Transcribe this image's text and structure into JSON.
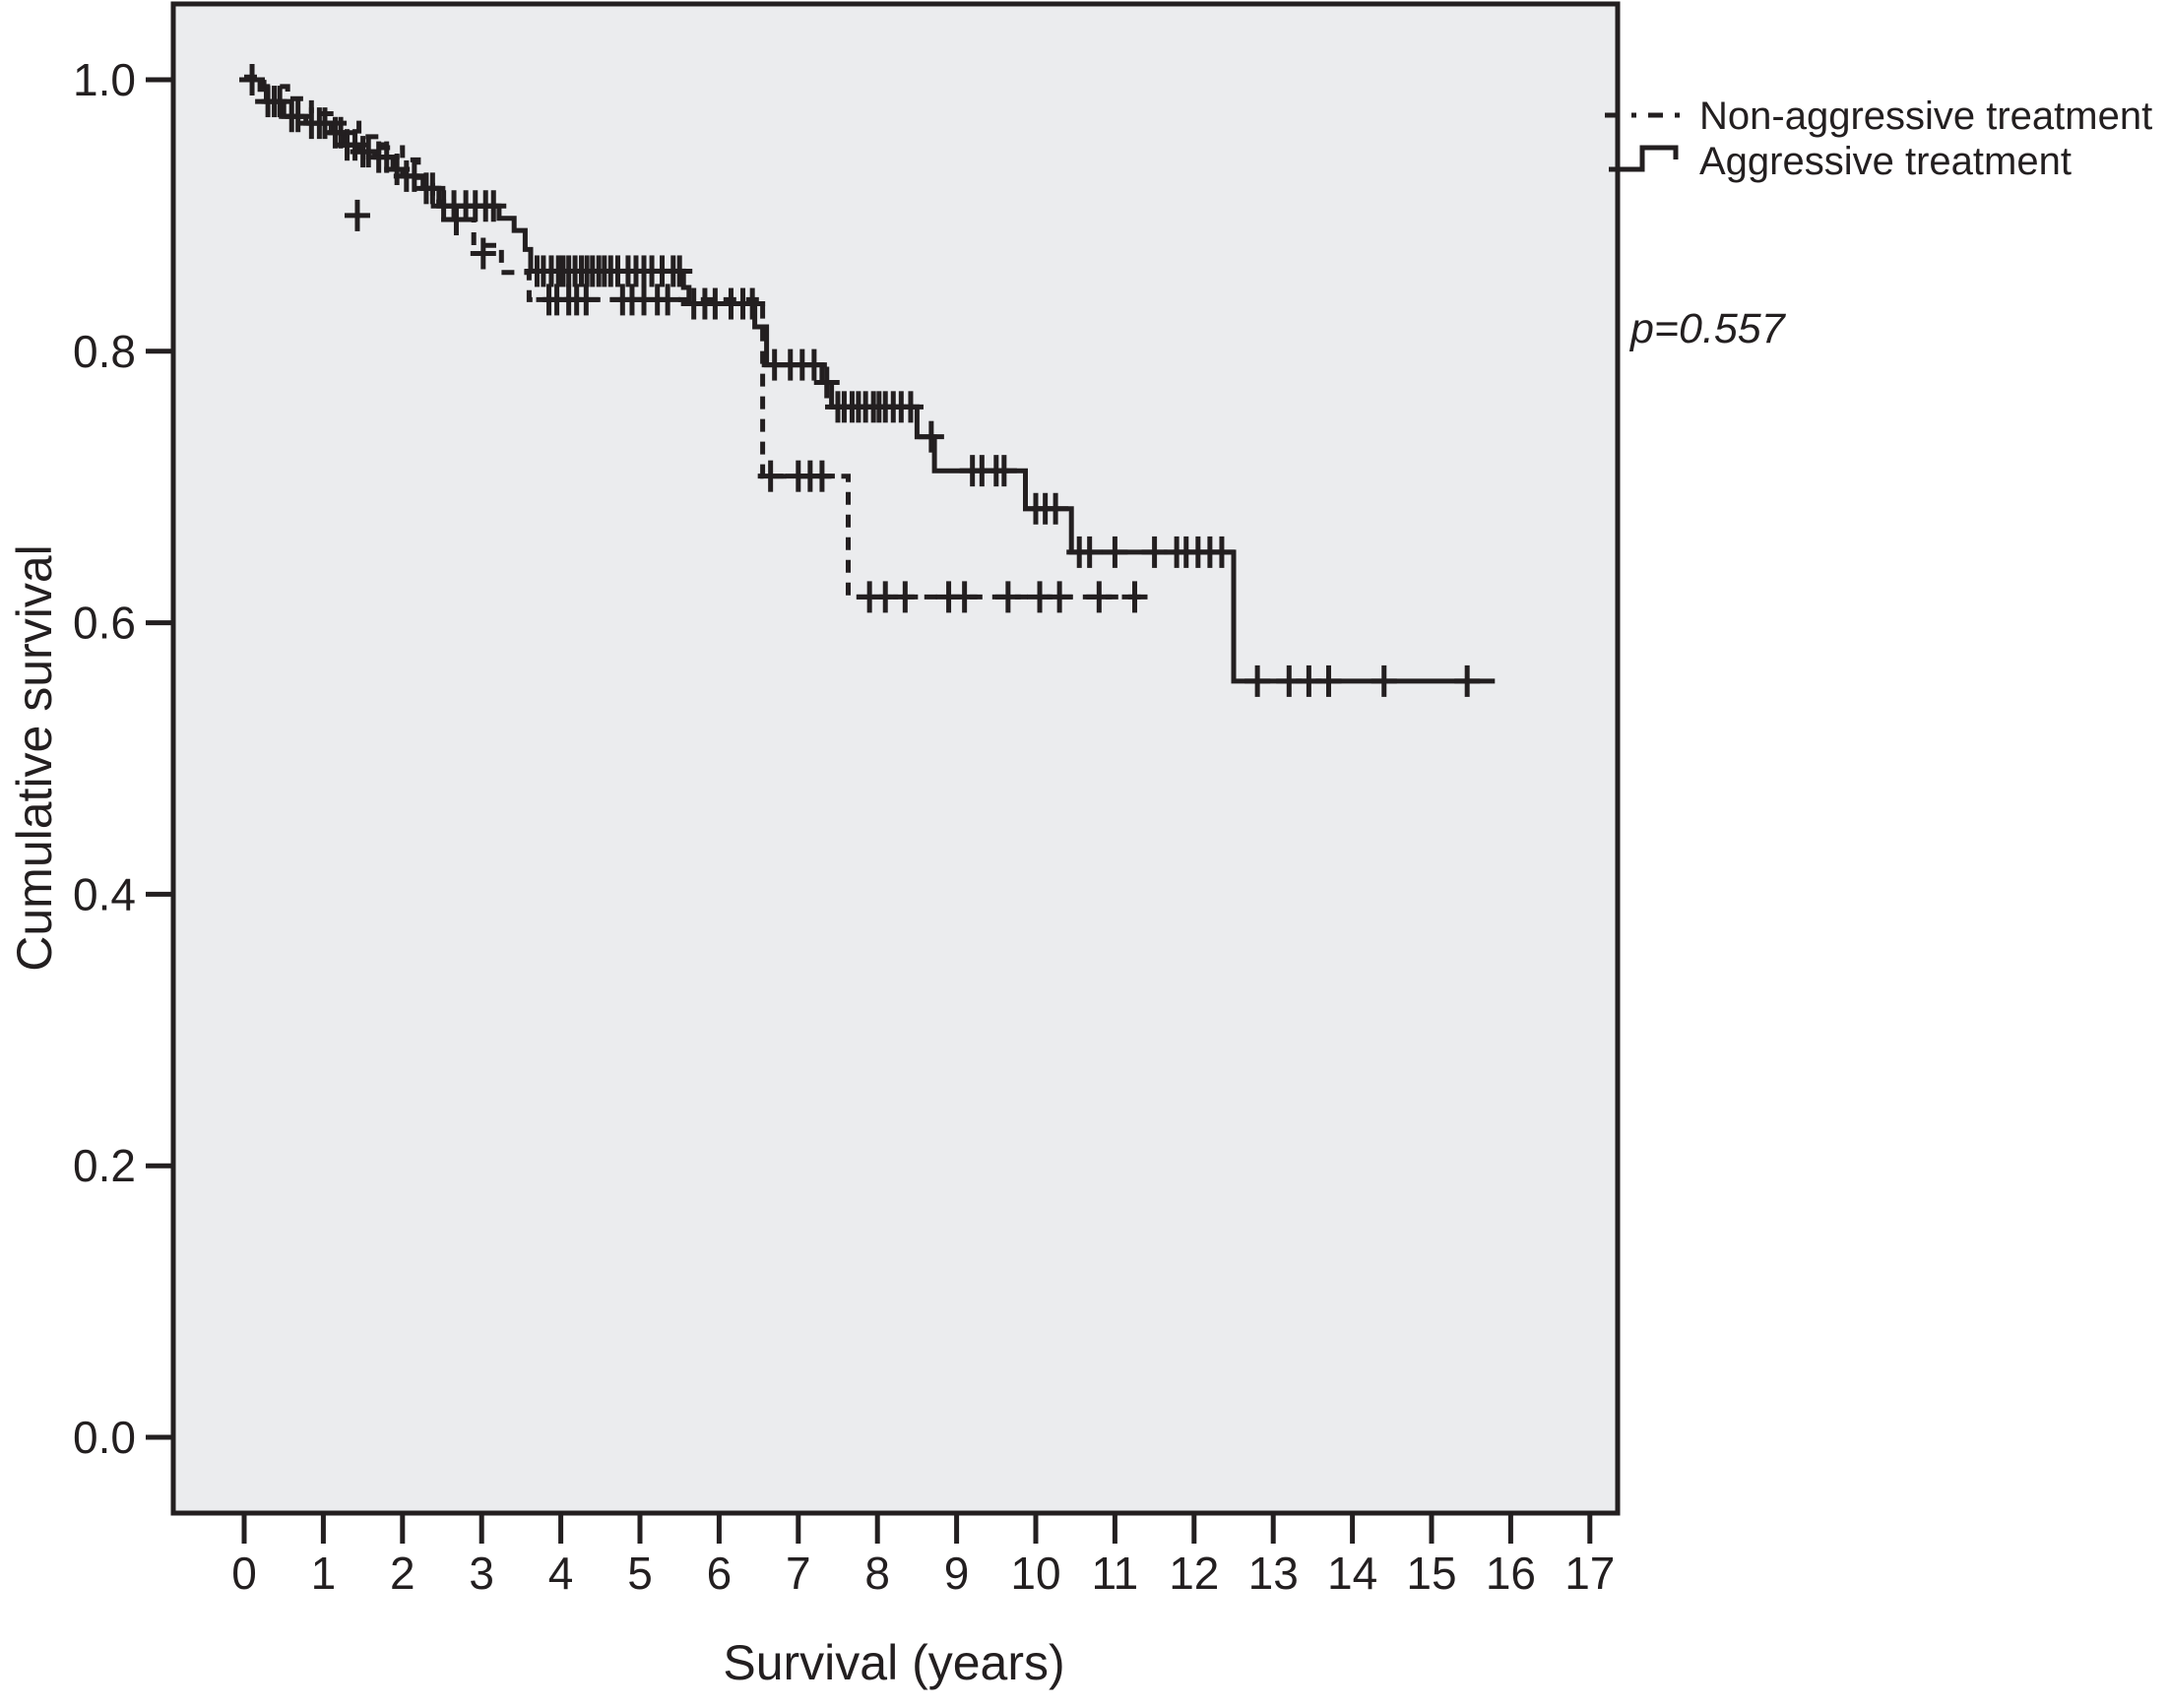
{
  "colors": {
    "stroke": "#231f20",
    "plot_bg": "#ebecee",
    "page_bg": "#ffffff"
  },
  "annotation": {
    "p_value": "p=0.557"
  },
  "legend": {
    "items": [
      {
        "label": "Non-aggressive treatment",
        "style": "dashed"
      },
      {
        "label": "Aggressive treatment",
        "style": "solid"
      }
    ]
  },
  "chart_data": {
    "type": "line",
    "subtype": "kaplan-meier-step",
    "title": "",
    "xlabel": "Survival (years)",
    "ylabel": "Cumulative survival",
    "xlim": [
      0,
      17
    ],
    "ylim": [
      0.0,
      1.0
    ],
    "grid": false,
    "legend_position": "top-right-outside",
    "p_value": "p=0.557",
    "x_ticks": [
      {
        "label": "0",
        "value": 0
      },
      {
        "label": "1",
        "value": 1
      },
      {
        "label": "2",
        "value": 2
      },
      {
        "label": "3",
        "value": 3
      },
      {
        "label": "4",
        "value": 4
      },
      {
        "label": "5",
        "value": 5
      },
      {
        "label": "6",
        "value": 6
      },
      {
        "label": "7",
        "value": 7
      },
      {
        "label": "8",
        "value": 8
      },
      {
        "label": "9",
        "value": 9
      },
      {
        "label": "10",
        "value": 10
      },
      {
        "label": "11",
        "value": 11
      },
      {
        "label": "12",
        "value": 12
      },
      {
        "label": "13",
        "value": 13
      },
      {
        "label": "14",
        "value": 14
      },
      {
        "label": "15",
        "value": 15
      },
      {
        "label": "16",
        "value": 16
      },
      {
        "label": "17",
        "value": 17
      }
    ],
    "y_ticks": [
      {
        "label": "1.0",
        "value": 1.0
      },
      {
        "label": "0.8",
        "value": 0.8
      },
      {
        "label": "0.6",
        "value": 0.6
      },
      {
        "label": "0.4",
        "value": 0.4
      },
      {
        "label": "0.2",
        "value": 0.2
      },
      {
        "label": "0.0",
        "value": 0.0
      }
    ],
    "series": [
      {
        "name": "Non-aggressive treatment",
        "line": "dashed",
        "end": 11.4,
        "steps": [
          [
            0,
            1.002
          ],
          [
            0.25,
            0.995
          ],
          [
            0.55,
            0.986
          ],
          [
            0.85,
            0.975
          ],
          [
            1.15,
            0.968
          ],
          [
            1.45,
            0.958
          ],
          [
            1.75,
            0.95
          ],
          [
            2.0,
            0.941
          ],
          [
            2.2,
            0.928
          ],
          [
            2.38,
            0.91
          ],
          [
            2.52,
            0.897
          ],
          [
            2.9,
            0.878
          ],
          [
            3.25,
            0.858
          ],
          [
            3.6,
            0.838
          ],
          [
            6.55,
            0.708
          ],
          [
            7.63,
            0.619
          ]
        ],
        "censors": [
          [
            1.43,
            0.9
          ],
          [
            2.68,
            0.897
          ],
          [
            3.02,
            0.872
          ],
          [
            3.85,
            0.838
          ],
          [
            3.95,
            0.838
          ],
          [
            4.1,
            0.838
          ],
          [
            4.2,
            0.838
          ],
          [
            4.32,
            0.838
          ],
          [
            4.78,
            0.838
          ],
          [
            4.9,
            0.838
          ],
          [
            5.05,
            0.838
          ],
          [
            5.22,
            0.838
          ],
          [
            5.35,
            0.838
          ],
          [
            6.65,
            0.708
          ],
          [
            7.0,
            0.708
          ],
          [
            7.15,
            0.708
          ],
          [
            7.3,
            0.708
          ],
          [
            7.9,
            0.619
          ],
          [
            8.1,
            0.619
          ],
          [
            8.35,
            0.619
          ],
          [
            8.9,
            0.619
          ],
          [
            9.1,
            0.619
          ],
          [
            9.65,
            0.619
          ],
          [
            10.05,
            0.619
          ],
          [
            10.3,
            0.619
          ],
          [
            10.8,
            0.619
          ],
          [
            11.25,
            0.619
          ]
        ]
      },
      {
        "name": "Aggressive treatment",
        "line": "solid",
        "end": 15.8,
        "steps": [
          [
            0,
            1.0
          ],
          [
            0.2,
            0.993
          ],
          [
            0.28,
            0.984
          ],
          [
            0.5,
            0.973
          ],
          [
            0.78,
            0.968
          ],
          [
            1.1,
            0.961
          ],
          [
            1.27,
            0.952
          ],
          [
            1.45,
            0.947
          ],
          [
            1.65,
            0.943
          ],
          [
            1.88,
            0.934
          ],
          [
            2.0,
            0.929
          ],
          [
            2.26,
            0.92
          ],
          [
            2.46,
            0.907
          ],
          [
            3.22,
            0.898
          ],
          [
            3.41,
            0.889
          ],
          [
            3.55,
            0.875
          ],
          [
            3.62,
            0.859
          ],
          [
            5.55,
            0.847
          ],
          [
            5.62,
            0.835
          ],
          [
            6.45,
            0.818
          ],
          [
            6.6,
            0.79
          ],
          [
            7.3,
            0.777
          ],
          [
            7.42,
            0.759
          ],
          [
            8.5,
            0.737
          ],
          [
            8.72,
            0.712
          ],
          [
            9.87,
            0.684
          ],
          [
            10.45,
            0.652
          ],
          [
            12.5,
            0.557
          ]
        ],
        "censors": [
          [
            0.1,
            1.0
          ],
          [
            0.3,
            0.984
          ],
          [
            0.38,
            0.984
          ],
          [
            0.45,
            0.984
          ],
          [
            0.6,
            0.973
          ],
          [
            0.68,
            0.973
          ],
          [
            0.85,
            0.968
          ],
          [
            0.95,
            0.968
          ],
          [
            1.02,
            0.968
          ],
          [
            1.15,
            0.961
          ],
          [
            1.22,
            0.961
          ],
          [
            1.3,
            0.952
          ],
          [
            1.4,
            0.952
          ],
          [
            1.5,
            0.947
          ],
          [
            1.57,
            0.947
          ],
          [
            1.7,
            0.943
          ],
          [
            1.8,
            0.943
          ],
          [
            1.93,
            0.934
          ],
          [
            2.05,
            0.929
          ],
          [
            2.15,
            0.929
          ],
          [
            2.3,
            0.92
          ],
          [
            2.38,
            0.92
          ],
          [
            2.52,
            0.907
          ],
          [
            2.65,
            0.907
          ],
          [
            2.8,
            0.907
          ],
          [
            2.92,
            0.907
          ],
          [
            3.05,
            0.907
          ],
          [
            3.15,
            0.907
          ],
          [
            3.7,
            0.859
          ],
          [
            3.78,
            0.859
          ],
          [
            3.88,
            0.859
          ],
          [
            3.97,
            0.859
          ],
          [
            4.03,
            0.859
          ],
          [
            4.1,
            0.859
          ],
          [
            4.18,
            0.859
          ],
          [
            4.26,
            0.859
          ],
          [
            4.33,
            0.859
          ],
          [
            4.4,
            0.859
          ],
          [
            4.48,
            0.859
          ],
          [
            4.55,
            0.859
          ],
          [
            4.63,
            0.859
          ],
          [
            4.72,
            0.859
          ],
          [
            4.85,
            0.859
          ],
          [
            4.95,
            0.859
          ],
          [
            5.05,
            0.859
          ],
          [
            5.15,
            0.859
          ],
          [
            5.28,
            0.859
          ],
          [
            5.42,
            0.859
          ],
          [
            5.5,
            0.859
          ],
          [
            5.68,
            0.835
          ],
          [
            5.82,
            0.835
          ],
          [
            5.95,
            0.835
          ],
          [
            6.15,
            0.835
          ],
          [
            6.3,
            0.835
          ],
          [
            6.42,
            0.835
          ],
          [
            6.7,
            0.79
          ],
          [
            6.9,
            0.79
          ],
          [
            7.05,
            0.79
          ],
          [
            7.2,
            0.79
          ],
          [
            7.36,
            0.777
          ],
          [
            7.5,
            0.759
          ],
          [
            7.58,
            0.759
          ],
          [
            7.68,
            0.759
          ],
          [
            7.76,
            0.759
          ],
          [
            7.85,
            0.759
          ],
          [
            7.95,
            0.759
          ],
          [
            8.02,
            0.759
          ],
          [
            8.1,
            0.759
          ],
          [
            8.2,
            0.759
          ],
          [
            8.3,
            0.759
          ],
          [
            8.42,
            0.759
          ],
          [
            8.68,
            0.737
          ],
          [
            9.2,
            0.712
          ],
          [
            9.32,
            0.712
          ],
          [
            9.5,
            0.712
          ],
          [
            9.6,
            0.712
          ],
          [
            10.0,
            0.684
          ],
          [
            10.12,
            0.684
          ],
          [
            10.25,
            0.684
          ],
          [
            10.55,
            0.652
          ],
          [
            10.68,
            0.652
          ],
          [
            11.0,
            0.652
          ],
          [
            11.5,
            0.652
          ],
          [
            11.78,
            0.652
          ],
          [
            11.9,
            0.652
          ],
          [
            12.05,
            0.652
          ],
          [
            12.2,
            0.652
          ],
          [
            12.35,
            0.652
          ],
          [
            12.8,
            0.557
          ],
          [
            13.2,
            0.557
          ],
          [
            13.45,
            0.557
          ],
          [
            13.7,
            0.557
          ],
          [
            14.4,
            0.557
          ],
          [
            15.45,
            0.557
          ]
        ]
      }
    ]
  }
}
